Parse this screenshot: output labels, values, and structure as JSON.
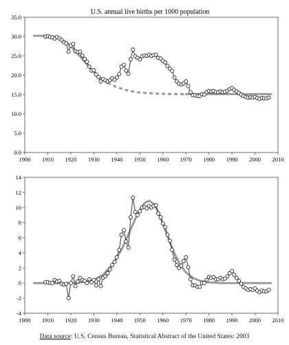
{
  "chart_data": [
    {
      "type": "line",
      "title": "U.S. annual live births per 1000 population",
      "xlabel": "",
      "ylabel": "",
      "xlim": [
        1900,
        2010
      ],
      "ylim": [
        0,
        35
      ],
      "x_ticks": [
        "1900",
        "1910",
        "1920",
        "1930",
        "1940",
        "1950",
        "1960",
        "1970",
        "1980",
        "1990",
        "2000",
        "2010"
      ],
      "y_ticks": [
        "0.0",
        "5.0",
        "10.0",
        "15.0",
        "20.0",
        "25.0",
        "30.0",
        "35.0"
      ],
      "grid": false,
      "legend": "none",
      "series": [
        {
          "style": "markers",
          "x": [
            1909,
            1910,
            1911,
            1912,
            1913,
            1914,
            1915,
            1916,
            1917,
            1918,
            1919,
            1920,
            1921,
            1922,
            1923,
            1924,
            1925,
            1926,
            1927,
            1928,
            1929,
            1930,
            1931,
            1932,
            1933,
            1934,
            1935,
            1936,
            1937,
            1938,
            1939,
            1940,
            1941,
            1942,
            1943,
            1944,
            1945,
            1946,
            1947,
            1948,
            1949,
            1950,
            1951,
            1952,
            1953,
            1954,
            1955,
            1956,
            1957,
            1958,
            1959,
            1960,
            1961,
            1962,
            1963,
            1964,
            1965,
            1966,
            1967,
            1968,
            1969,
            1970,
            1971,
            1972,
            1973,
            1974,
            1975,
            1976,
            1977,
            1978,
            1979,
            1980,
            1981,
            1982,
            1983,
            1984,
            1985,
            1986,
            1987,
            1988,
            1989,
            1990,
            1991,
            1992,
            1993,
            1994,
            1995,
            1996,
            1997,
            1998,
            1999,
            2000,
            2001,
            2002,
            2003,
            2004,
            2005,
            2006
          ],
          "y": [
            30.0,
            30.1,
            29.9,
            29.8,
            29.5,
            29.9,
            29.5,
            29.1,
            28.5,
            28.2,
            26.1,
            27.7,
            28.1,
            26.2,
            26.0,
            26.1,
            25.1,
            24.2,
            23.5,
            22.2,
            21.2,
            21.3,
            20.2,
            19.5,
            18.4,
            19.0,
            18.7,
            18.4,
            18.7,
            19.2,
            18.8,
            19.4,
            20.3,
            22.2,
            22.7,
            21.2,
            20.4,
            24.1,
            26.6,
            24.9,
            24.5,
            24.1,
            24.9,
            25.1,
            25.0,
            25.3,
            25.0,
            25.2,
            25.3,
            24.5,
            24.3,
            23.7,
            23.3,
            22.4,
            21.7,
            21.1,
            19.4,
            18.4,
            17.8,
            17.6,
            17.9,
            18.4,
            17.2,
            15.6,
            14.8,
            14.8,
            14.6,
            14.6,
            15.1,
            15.0,
            15.6,
            15.9,
            15.8,
            15.9,
            15.6,
            15.6,
            15.8,
            15.6,
            15.7,
            16.0,
            16.4,
            16.7,
            16.2,
            15.8,
            15.4,
            15.0,
            14.6,
            14.4,
            14.2,
            14.3,
            14.2,
            14.4,
            14.1,
            13.9,
            14.1,
            14.0,
            14.0,
            14.2
          ]
        },
        {
          "style": "fit-solid",
          "x": [
            1904,
            1906,
            1908,
            1910,
            1912,
            1914,
            1916,
            1918,
            1920,
            1922,
            1924,
            1926,
            1928,
            1930,
            1932,
            1934,
            1936
          ],
          "y": [
            30.2,
            30.2,
            30.2,
            30.1,
            30.0,
            29.7,
            29.2,
            28.5,
            27.5,
            26.2,
            24.9,
            23.5,
            22.1,
            20.8,
            19.7,
            18.8,
            18.0
          ]
        },
        {
          "style": "fit-dashed",
          "x": [
            1936,
            1940,
            1945,
            1950,
            1955,
            1960,
            1965,
            1970
          ],
          "y": [
            18.0,
            16.9,
            16.0,
            15.5,
            15.3,
            15.2,
            15.1,
            15.1
          ]
        },
        {
          "style": "fit-solid",
          "x": [
            1970,
            1980,
            1990,
            2000,
            2007
          ],
          "y": [
            15.1,
            15.1,
            15.1,
            15.1,
            15.1
          ]
        }
      ]
    },
    {
      "type": "line",
      "title": "",
      "xlabel": "",
      "ylabel": "",
      "xlim": [
        1900,
        2010
      ],
      "ylim": [
        -4,
        14
      ],
      "x_ticks": [
        "1900",
        "1910",
        "1920",
        "1930",
        "1940",
        "1950",
        "1960",
        "1970",
        "1980",
        "1990",
        "2000",
        "2010"
      ],
      "y_ticks": [
        "-4",
        "-2",
        "0",
        "2",
        "4",
        "6",
        "8",
        "10",
        "12",
        "14"
      ],
      "grid": false,
      "legend": "none",
      "series": [
        {
          "style": "markers",
          "x": [
            1909,
            1910,
            1911,
            1912,
            1913,
            1914,
            1915,
            1916,
            1917,
            1918,
            1919,
            1920,
            1921,
            1922,
            1923,
            1924,
            1925,
            1926,
            1927,
            1928,
            1929,
            1930,
            1931,
            1932,
            1933,
            1934,
            1935,
            1936,
            1937,
            1938,
            1939,
            1940,
            1941,
            1942,
            1943,
            1944,
            1945,
            1946,
            1947,
            1948,
            1949,
            1950,
            1951,
            1952,
            1953,
            1954,
            1955,
            1956,
            1957,
            1958,
            1959,
            1960,
            1961,
            1962,
            1963,
            1964,
            1965,
            1966,
            1967,
            1968,
            1969,
            1970,
            1971,
            1972,
            1973,
            1974,
            1975,
            1976,
            1977,
            1978,
            1979,
            1980,
            1981,
            1982,
            1983,
            1984,
            1985,
            1986,
            1987,
            1988,
            1989,
            1990,
            1991,
            1992,
            1993,
            1994,
            1995,
            1996,
            1997,
            1998,
            1999,
            2000,
            2001,
            2002,
            2003,
            2004,
            2005,
            2006
          ],
          "y": [
            0.1,
            0.1,
            0.0,
            0.0,
            0.4,
            0.2,
            0.3,
            -0.1,
            -0.2,
            -0.1,
            -2.0,
            0.0,
            0.9,
            -0.4,
            0.2,
            0.7,
            0.4,
            0.3,
            0.0,
            0.5,
            0.1,
            0.4,
            -0.3,
            0.5,
            -0.4,
            0.7,
            0.9,
            1.3,
            1.8,
            2.4,
            2.8,
            3.4,
            4.4,
            6.4,
            7.0,
            5.5,
            4.7,
            8.7,
            11.3,
            9.4,
            9.0,
            9.5,
            10.0,
            10.1,
            9.9,
            10.2,
            10.0,
            10.2,
            10.3,
            9.2,
            8.7,
            7.9,
            7.4,
            6.4,
            5.6,
            4.4,
            3.1,
            2.4,
            2.0,
            2.3,
            2.9,
            3.4,
            2.1,
            0.5,
            -0.3,
            -0.3,
            -0.5,
            -0.5,
            0.0,
            0.0,
            0.4,
            0.8,
            0.7,
            0.8,
            0.5,
            0.5,
            0.7,
            0.5,
            0.6,
            0.9,
            1.3,
            1.6,
            1.1,
            0.7,
            0.3,
            -0.1,
            -0.5,
            -0.7,
            -0.9,
            -0.8,
            -0.9,
            -0.7,
            -1.0,
            -1.2,
            -1.0,
            -1.1,
            -1.1,
            -0.9
          ]
        },
        {
          "style": "fit-solid",
          "x": [
            1904,
            1910,
            1920,
            1925,
            1930,
            1934,
            1938,
            1942,
            1945,
            1948,
            1950,
            1952,
            1954,
            1956,
            1958,
            1960,
            1962,
            1965,
            1968,
            1970,
            1973,
            1976,
            1980,
            1985,
            1990,
            2000,
            2007
          ],
          "y": [
            0.0,
            0.0,
            0.0,
            0.1,
            0.4,
            1.1,
            2.4,
            4.4,
            6.4,
            8.5,
            9.7,
            10.6,
            10.9,
            10.5,
            9.4,
            7.9,
            6.2,
            3.9,
            2.2,
            1.4,
            0.7,
            0.3,
            0.1,
            0.0,
            0.0,
            0.0,
            0.0
          ]
        }
      ]
    }
  ],
  "footer": {
    "source_label": "Data source",
    "source_text": ": U.S. Census Bureau, Statistical Abstract of the United States: 2003"
  }
}
